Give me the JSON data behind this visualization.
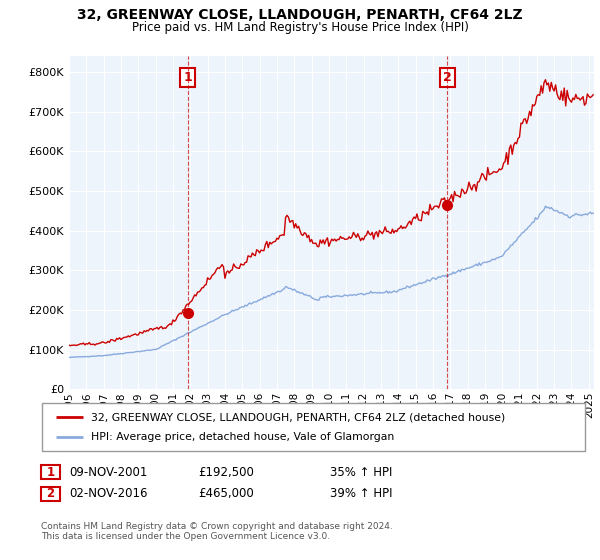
{
  "title": "32, GREENWAY CLOSE, LLANDOUGH, PENARTH, CF64 2LZ",
  "subtitle": "Price paid vs. HM Land Registry's House Price Index (HPI)",
  "ylabel_ticks": [
    "£0",
    "£100K",
    "£200K",
    "£300K",
    "£400K",
    "£500K",
    "£600K",
    "£700K",
    "£800K"
  ],
  "ytick_vals": [
    0,
    100000,
    200000,
    300000,
    400000,
    500000,
    600000,
    700000,
    800000
  ],
  "ylim": [
    0,
    840000
  ],
  "xlim_start": 1995.0,
  "xlim_end": 2025.3,
  "sale1_date": 2001.86,
  "sale1_price": 192500,
  "sale2_date": 2016.84,
  "sale2_price": 465000,
  "house_line_color": "#cc0000",
  "hpi_line_color": "#88aadd",
  "vline_color": "#cc0000",
  "marker_box_color": "#cc0000",
  "chart_bg": "#eef4fb",
  "legend_house": "32, GREENWAY CLOSE, LLANDOUGH, PENARTH, CF64 2LZ (detached house)",
  "legend_hpi": "HPI: Average price, detached house, Vale of Glamorgan",
  "sale1_date_str": "09-NOV-2001",
  "sale1_price_str": "£192,500",
  "sale1_pct": "35% ↑ HPI",
  "sale2_date_str": "02-NOV-2016",
  "sale2_price_str": "£465,000",
  "sale2_pct": "39% ↑ HPI",
  "footer": "Contains HM Land Registry data © Crown copyright and database right 2024.\nThis data is licensed under the Open Government Licence v3.0.",
  "xticks": [
    1995,
    1996,
    1997,
    1998,
    1999,
    2000,
    2001,
    2002,
    2003,
    2004,
    2005,
    2006,
    2007,
    2008,
    2009,
    2010,
    2011,
    2012,
    2013,
    2014,
    2015,
    2016,
    2017,
    2018,
    2019,
    2020,
    2021,
    2022,
    2023,
    2024,
    2025
  ]
}
